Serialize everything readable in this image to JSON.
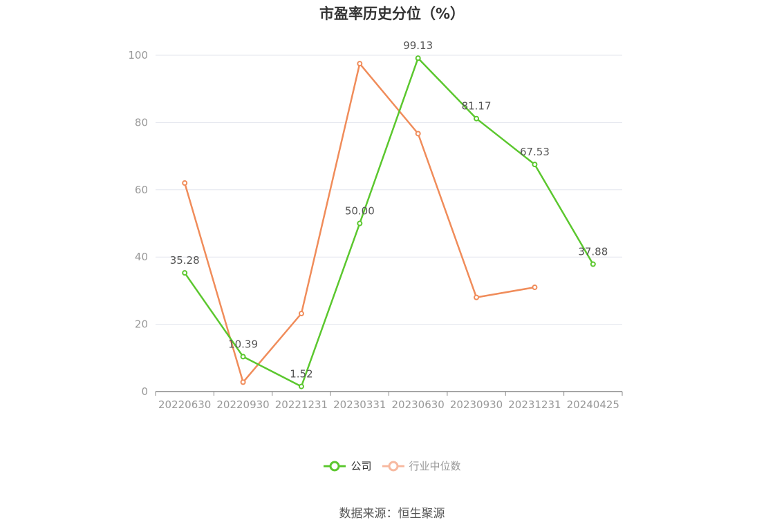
{
  "chart_data": {
    "type": "line",
    "title": "市盈率历史分位（%）",
    "categories": [
      "20220630",
      "20220930",
      "20221231",
      "20230331",
      "20230630",
      "20230930",
      "20231231",
      "20240425"
    ],
    "ylim": [
      0,
      100
    ],
    "yticks": [
      0,
      20,
      40,
      60,
      80,
      100
    ],
    "grid": true,
    "legend_position": "bottom",
    "series": [
      {
        "name": "公司",
        "color": "#5bc72e",
        "values": [
          35.28,
          10.39,
          1.52,
          50.0,
          99.13,
          81.17,
          67.53,
          37.88
        ],
        "labels": [
          "35.28",
          "10.39",
          "1.52",
          "50.00",
          "99.13",
          "81.17",
          "67.53",
          "37.88"
        ]
      },
      {
        "name": "行业中位数",
        "color": "#f08c5a",
        "legend_color": "#f7b9a0",
        "values": [
          62.0,
          2.8,
          23.2,
          97.5,
          76.7,
          28.0,
          31.0,
          null
        ]
      }
    ]
  },
  "source": "数据来源：恒生聚源"
}
